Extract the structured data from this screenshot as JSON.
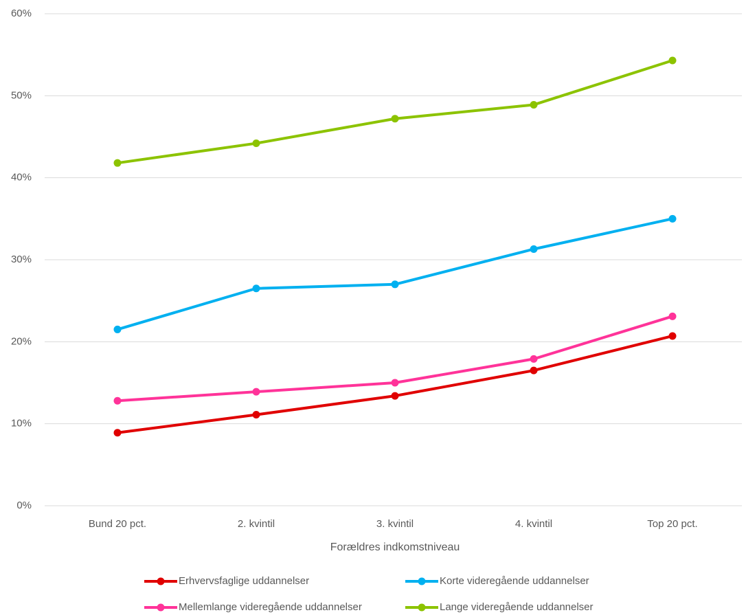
{
  "chart_data": {
    "type": "line",
    "x_label": "Forældres indkomstniveau",
    "categories": [
      "Bund 20 pct.",
      "2. kvintil",
      "3. kvintil",
      "4. kvintil",
      "Top 20 pct."
    ],
    "series": [
      {
        "name": "Erhvervsfaglige uddannelser",
        "color": "#e00000",
        "values": [
          8.9,
          11.1,
          13.4,
          16.5,
          20.7
        ]
      },
      {
        "name": "Korte videregående uddannelser",
        "color": "#00b0f0",
        "values": [
          21.5,
          26.5,
          27.0,
          31.3,
          35.0
        ]
      },
      {
        "name": "Mellemlange videregående uddannelser",
        "color": "#ff3399",
        "values": [
          12.8,
          13.9,
          15.0,
          17.9,
          23.1
        ]
      },
      {
        "name": "Lange videregående uddannelser",
        "color": "#8cc300",
        "values": [
          41.8,
          44.2,
          47.2,
          48.9,
          54.3
        ]
      }
    ],
    "ylim": [
      0,
      60
    ],
    "yticks": [
      {
        "value": 0,
        "label": "0%"
      },
      {
        "value": 10,
        "label": "10%"
      },
      {
        "value": 20,
        "label": "20%"
      },
      {
        "value": 30,
        "label": "30%"
      },
      {
        "value": 40,
        "label": "40%"
      },
      {
        "value": 50,
        "label": "50%"
      },
      {
        "value": 60,
        "label": "60%"
      }
    ],
    "grid": true
  }
}
